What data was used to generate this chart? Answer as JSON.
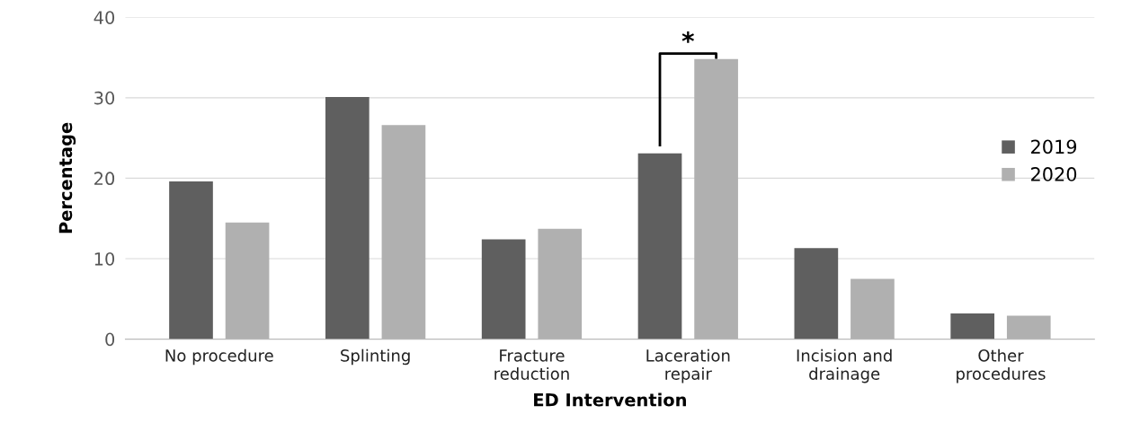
{
  "chart_data": {
    "type": "bar",
    "xlabel": "ED Intervention",
    "ylabel": "Percentage",
    "categories": [
      "No procedure",
      "Splinting",
      "Fracture\nreduction",
      "Laceration\nrepair",
      "Incision and\ndrainage",
      "Other\nprocedures"
    ],
    "series": [
      {
        "name": "2019",
        "color": "#5f5f5f",
        "values": [
          19.6,
          30.1,
          12.4,
          23.1,
          11.3,
          3.2
        ]
      },
      {
        "name": "2020",
        "color": "#b0b0b0",
        "values": [
          14.5,
          26.6,
          13.7,
          34.8,
          7.5,
          2.9
        ]
      }
    ],
    "ylim": [
      0,
      40
    ],
    "yticks": [
      0,
      10,
      20,
      30,
      40
    ],
    "grid": "y",
    "legend": "right",
    "annotations": [
      "*"
    ]
  }
}
